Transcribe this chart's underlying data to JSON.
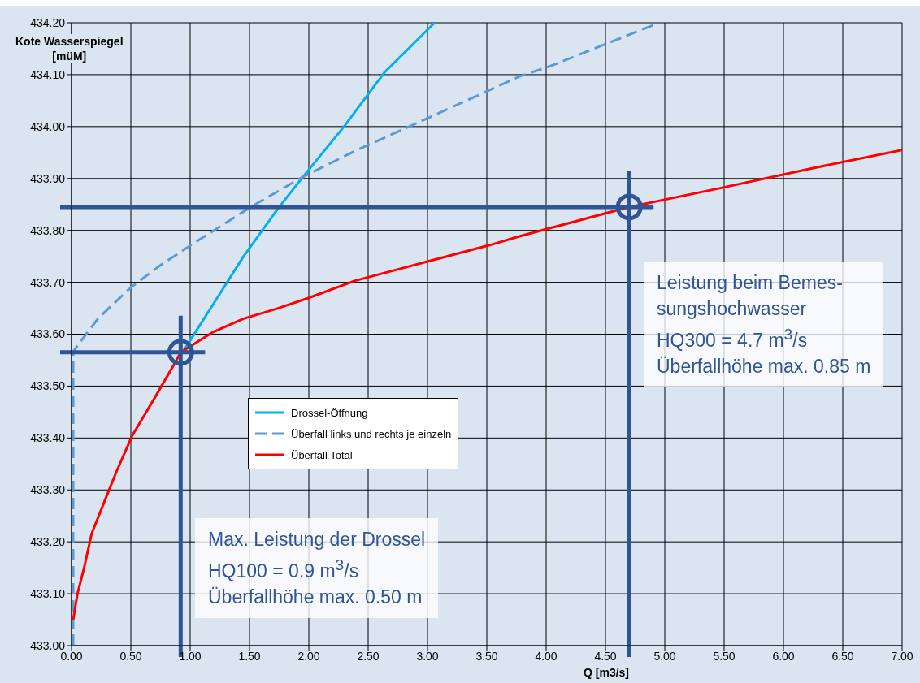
{
  "chart_data": {
    "type": "line",
    "xlabel": "Q [m3/s]",
    "ylabel": "Kote Wasserspiegel\n[müM]",
    "xlim": [
      0,
      7
    ],
    "ylim": [
      433.0,
      434.2
    ],
    "xticks": [
      {
        "value": 0,
        "label": "0.00"
      },
      {
        "value": 0.5,
        "label": "0.50"
      },
      {
        "value": 1,
        "label": "1.00"
      },
      {
        "value": 1.5,
        "label": "1.50"
      },
      {
        "value": 2,
        "label": "2.00"
      },
      {
        "value": 2.5,
        "label": "2.50"
      },
      {
        "value": 3,
        "label": "3.00"
      },
      {
        "value": 3.5,
        "label": "3.50"
      },
      {
        "value": 4,
        "label": "4.00"
      },
      {
        "value": 4.5,
        "label": "4.50"
      },
      {
        "value": 5,
        "label": "5.00"
      },
      {
        "value": 5.5,
        "label": "5.50"
      },
      {
        "value": 6,
        "label": "6.00"
      },
      {
        "value": 6.5,
        "label": "6.50"
      },
      {
        "value": 7,
        "label": "7.00"
      }
    ],
    "yticks": [
      {
        "value": 433.0,
        "label": "433.00"
      },
      {
        "value": 433.1,
        "label": "433.10"
      },
      {
        "value": 433.2,
        "label": "433.20"
      },
      {
        "value": 433.3,
        "label": "433.30"
      },
      {
        "value": 433.4,
        "label": "433.40"
      },
      {
        "value": 433.5,
        "label": "433.50"
      },
      {
        "value": 433.6,
        "label": "433.60"
      },
      {
        "value": 433.7,
        "label": "433.70"
      },
      {
        "value": 433.8,
        "label": "433.80"
      },
      {
        "value": 433.9,
        "label": "433.90"
      },
      {
        "value": 434.0,
        "label": "434.00"
      },
      {
        "value": 434.1,
        "label": "434.10"
      },
      {
        "value": 434.2,
        "label": "434.20"
      }
    ],
    "grid": true,
    "legend": "center",
    "marker": "none",
    "series": [
      {
        "name": "Drossel-Öffnung",
        "color": "#00b0f0",
        "line_style": "solid",
        "x": [
          0.95,
          1.17,
          1.45,
          1.75,
          1.95,
          2.29,
          2.64,
          3.06
        ],
        "values": [
          433.57,
          433.649,
          433.75,
          433.845,
          433.903,
          433.998,
          434.105,
          434.2
        ]
      },
      {
        "name": "Überfall links und rechts je einzeln",
        "color": "#5b9bd5",
        "line_style": "dashed",
        "x": [
          0.014,
          0.014,
          0.08,
          0.22,
          0.31,
          0.5,
          0.75,
          1.07,
          1.51,
          1.95,
          2.39,
          3.0,
          3.78,
          4.03,
          4.92
        ],
        "values": [
          433.0,
          433.566,
          433.587,
          433.629,
          433.649,
          433.69,
          433.733,
          433.781,
          433.845,
          433.903,
          433.953,
          434.016,
          434.097,
          434.116,
          434.197
        ]
      },
      {
        "name": "Überfall Total",
        "color": "#ff0000",
        "line_style": "solid",
        "x": [
          0.014,
          0.05,
          0.105,
          0.17,
          0.29,
          0.38,
          0.51,
          0.7,
          0.86,
          0.92,
          1.2,
          1.45,
          1.73,
          2.0,
          2.39,
          3.0,
          3.53,
          3.78,
          4.7,
          5.5,
          6.25,
          7.0
        ],
        "values": [
          433.05,
          433.1,
          433.149,
          433.216,
          433.285,
          433.336,
          433.404,
          433.477,
          433.54,
          433.565,
          433.605,
          433.63,
          433.649,
          433.67,
          433.703,
          433.74,
          433.772,
          433.789,
          433.845,
          433.883,
          433.92,
          433.955
        ]
      }
    ],
    "ref_lines": [
      {
        "axis": "x",
        "value": 0.92,
        "color": "#2f5597"
      },
      {
        "axis": "y",
        "value": 433.565,
        "color": "#2f5597"
      },
      {
        "axis": "x",
        "value": 4.7,
        "color": "#2f5597"
      },
      {
        "axis": "y",
        "value": 433.845,
        "color": "#2f5597"
      }
    ],
    "annotations": [
      "Max. Leistung der Drossel\nHQ100 = 0.9 m$^{3}$/s\nÜberfallhöhe max. 0.50 m",
      "Leistung beim Bemes-\nsungshochwasser\nHQ300 = 4.7 m$^{3}$/s\nÜberfallhöhe max. 0.85 m"
    ]
  }
}
